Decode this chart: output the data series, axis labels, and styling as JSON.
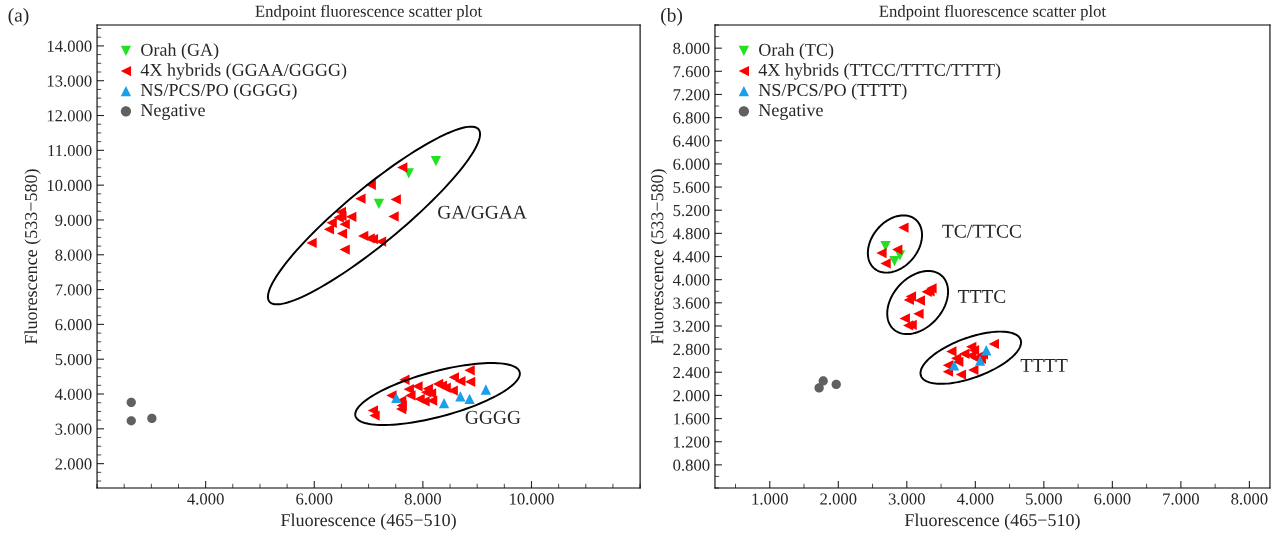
{
  "chart_data": [
    {
      "type": "scatter",
      "title": "Endpoint fluorescence scatter plot",
      "xlabel": "Fluorescence (465−510)",
      "ylabel": "Fluorescence (533−580)",
      "xlim": [
        2,
        12
      ],
      "ylim": [
        1.3,
        14.6
      ],
      "xticks": [
        {
          "value": 4,
          "label": "4.000"
        },
        {
          "value": 6,
          "label": "6.000"
        },
        {
          "value": 8,
          "label": "8.000"
        },
        {
          "value": 10,
          "label": "10.000"
        }
      ],
      "yticks": [
        {
          "value": 2,
          "label": "2.000"
        },
        {
          "value": 3,
          "label": "3.000"
        },
        {
          "value": 4,
          "label": "4.000"
        },
        {
          "value": 5,
          "label": "5.000"
        },
        {
          "value": 6,
          "label": "6.000"
        },
        {
          "value": 7,
          "label": "7.000"
        },
        {
          "value": 8,
          "label": "8.000"
        },
        {
          "value": 9,
          "label": "9.000"
        },
        {
          "value": 10,
          "label": "10.000"
        },
        {
          "value": 11,
          "label": "11.000"
        },
        {
          "value": 12,
          "label": "12.000"
        },
        {
          "value": 13,
          "label": "13.000"
        },
        {
          "value": 14,
          "label": "14.000"
        }
      ],
      "grid": false,
      "legend": "top left",
      "series": [
        {
          "name": "Orah (GA)",
          "color": "#22e022",
          "marker": "triangle_down",
          "x": [
            8.24,
            7.74,
            7.19
          ],
          "values": [
            10.69,
            10.34,
            9.46
          ]
        },
        {
          "name": "4X hybrids (GGAA/GGGG)",
          "color": "#ff0000",
          "marker": "triangle_left",
          "x": [
            7.62,
            7.04,
            6.85,
            7.5,
            6.49,
            6.5,
            6.45,
            6.68,
            7.46,
            6.32,
            6.56,
            6.27,
            6.51,
            6.9,
            7.02,
            7.08,
            7.23,
            5.95,
            6.56,
            8.86,
            8.57,
            8.69,
            8.87,
            7.66,
            7.9,
            8.28,
            8.35,
            8.42,
            8.09,
            7.74,
            8.55,
            7.42,
            7.77,
            8.06,
            8.15,
            7.94,
            8.17,
            7.6,
            7.6,
            8.03,
            7.08,
            7.11,
            7.61
          ],
          "values": [
            10.51,
            10.01,
            9.61,
            9.59,
            9.23,
            9.11,
            9.07,
            9.09,
            9.1,
            8.92,
            8.88,
            8.73,
            8.61,
            8.54,
            8.47,
            8.45,
            8.38,
            8.34,
            8.15,
            4.68,
            4.48,
            4.37,
            4.35,
            4.41,
            4.22,
            4.29,
            4.24,
            4.18,
            4.15,
            4.14,
            4.1,
            3.96,
            3.96,
            4.05,
            4.02,
            3.86,
            3.81,
            3.81,
            3.57,
            3.79,
            3.53,
            3.38,
            3.67
          ]
        },
        {
          "name": "NS/PCS/PO (GGGG)",
          "color": "#1aa0e8",
          "marker": "triangle",
          "x": [
            7.51,
            8.39,
            8.69,
            8.86,
            9.16
          ],
          "values": [
            3.89,
            3.74,
            3.93,
            3.86,
            4.13
          ]
        },
        {
          "name": "Negative",
          "color": "#606060",
          "marker": "circle",
          "x": [
            2.63,
            2.63,
            3.01
          ],
          "values": [
            3.76,
            3.23,
            3.3
          ]
        }
      ],
      "annotations": [
        "(a)",
        "GA/GGAA",
        "GGGG"
      ]
    },
    {
      "type": "scatter",
      "title": "Endpoint fluorescence scatter plot",
      "xlabel": "Fluorescence (465−510)",
      "ylabel": "Fluorescence (533−580)",
      "xlim": [
        0.2,
        8.3
      ],
      "ylim": [
        0.4,
        8.4
      ],
      "xticks": [
        {
          "value": 1,
          "label": "1.000"
        },
        {
          "value": 2,
          "label": "2.000"
        },
        {
          "value": 3,
          "label": "3.000"
        },
        {
          "value": 4,
          "label": "4.000"
        },
        {
          "value": 5,
          "label": "5.000"
        },
        {
          "value": 6,
          "label": "6.000"
        },
        {
          "value": 7,
          "label": "7.000"
        },
        {
          "value": 8,
          "label": "8.000"
        }
      ],
      "yticks": [
        {
          "value": 0.8,
          "label": "0.800"
        },
        {
          "value": 1.2,
          "label": "1.200"
        },
        {
          "value": 1.6,
          "label": "1.600"
        },
        {
          "value": 2.0,
          "label": "2.000"
        },
        {
          "value": 2.4,
          "label": "2.400"
        },
        {
          "value": 2.8,
          "label": "2.800"
        },
        {
          "value": 3.2,
          "label": "3.200"
        },
        {
          "value": 3.6,
          "label": "3.600"
        },
        {
          "value": 4.0,
          "label": "4.000"
        },
        {
          "value": 4.4,
          "label": "4.400"
        },
        {
          "value": 4.8,
          "label": "4.800"
        },
        {
          "value": 5.2,
          "label": "5.200"
        },
        {
          "value": 5.6,
          "label": "5.600"
        },
        {
          "value": 6.0,
          "label": "6.000"
        },
        {
          "value": 6.4,
          "label": "6.400"
        },
        {
          "value": 6.8,
          "label": "6.800"
        },
        {
          "value": 7.2,
          "label": "7.200"
        },
        {
          "value": 7.6,
          "label": "7.600"
        },
        {
          "value": 8.0,
          "label": "8.000"
        }
      ],
      "grid": false,
      "legend": "top left",
      "series": [
        {
          "name": "Orah (TC)",
          "color": "#22e022",
          "marker": "triangle_down",
          "x": [
            2.69,
            2.9,
            2.82
          ],
          "values": [
            4.58,
            4.42,
            4.32
          ]
        },
        {
          "name": "4X hybrids (TTCC/TTTC/TTTT)",
          "color": "#ff0000",
          "marker": "triangle_left",
          "x": [
            2.95,
            2.63,
            2.86,
            2.69,
            3.36,
            3.29,
            3.33,
            3.06,
            3.03,
            3.19,
            3.17,
            2.97,
            3.07,
            3.02,
            4.27,
            3.94,
            3.98,
            3.65,
            3.84,
            3.94,
            4.01,
            3.72,
            4.11,
            4.08,
            3.6,
            3.75,
            3.6,
            3.79,
            3.97
          ],
          "values": [
            4.9,
            4.46,
            4.52,
            4.28,
            3.85,
            3.79,
            3.8,
            3.71,
            3.65,
            3.64,
            3.41,
            3.33,
            3.22,
            3.21,
            2.89,
            2.84,
            2.78,
            2.76,
            2.72,
            2.69,
            2.64,
            2.64,
            2.71,
            2.63,
            2.52,
            2.58,
            2.41,
            2.36,
            2.44
          ]
        },
        {
          "name": "NS/PCS/PO (TTTT)",
          "color": "#1aa0e8",
          "marker": "triangle",
          "x": [
            3.69,
            4.16,
            4.07
          ],
          "values": [
            2.52,
            2.78,
            2.6
          ]
        },
        {
          "name": "Negative",
          "color": "#606060",
          "marker": "circle",
          "x": [
            1.78,
            1.72,
            1.97
          ],
          "values": [
            2.25,
            2.13,
            2.19
          ]
        }
      ],
      "annotations": [
        "(b)",
        "TC/TTCC",
        "TTTC",
        "TTTT"
      ]
    }
  ]
}
